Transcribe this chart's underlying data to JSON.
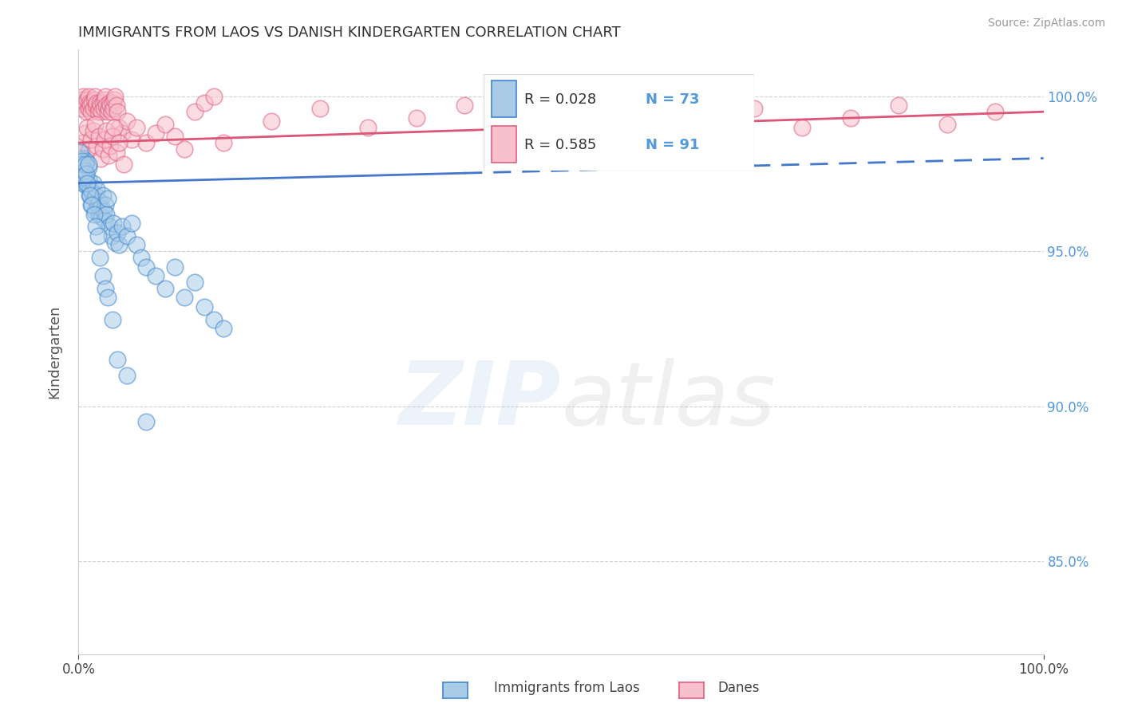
{
  "title": "IMMIGRANTS FROM LAOS VS DANISH KINDERGARTEN CORRELATION CHART",
  "source": "Source: ZipAtlas.com",
  "ylabel": "Kindergarten",
  "y_ticks": [
    85.0,
    90.0,
    95.0,
    100.0
  ],
  "y_tick_labels": [
    "85.0%",
    "90.0%",
    "95.0%",
    "100.0%"
  ],
  "legend_blue_r": "R = 0.028",
  "legend_blue_n": "N = 73",
  "legend_pink_r": "R = 0.585",
  "legend_pink_n": "N = 91",
  "blue_color": "#7EB3E0",
  "pink_color": "#F4A0B0",
  "blue_face": "#A8CCE8",
  "pink_face": "#F8C0CC",
  "blue_edge": "#4488CC",
  "pink_edge": "#E06080",
  "blue_line": "#4477CC",
  "pink_line": "#DD5577",
  "watermark_zip": "#AACCEE",
  "watermark_atlas": "#BBBBBB",
  "grid_color": "#CCCCCC",
  "title_color": "#333333",
  "source_color": "#999999",
  "ytick_color": "#5599DD",
  "ylabel_color": "#555555",
  "blue_x": [
    0.3,
    0.4,
    0.5,
    0.5,
    0.6,
    0.7,
    0.8,
    0.9,
    1.0,
    1.0,
    1.1,
    1.2,
    1.3,
    1.4,
    1.5,
    1.6,
    1.7,
    1.8,
    1.9,
    2.0,
    2.1,
    2.2,
    2.3,
    2.4,
    2.5,
    2.6,
    2.7,
    2.8,
    2.9,
    3.0,
    3.2,
    3.4,
    3.6,
    3.8,
    4.0,
    4.2,
    4.5,
    5.0,
    5.5,
    6.0,
    6.5,
    7.0,
    8.0,
    9.0,
    10.0,
    11.0,
    12.0,
    13.0,
    14.0,
    15.0,
    0.1,
    0.2,
    0.3,
    0.4,
    0.5,
    0.6,
    0.7,
    0.8,
    0.9,
    1.0,
    1.2,
    1.4,
    1.6,
    1.8,
    2.0,
    2.2,
    2.5,
    2.8,
    3.0,
    3.5,
    4.0,
    5.0,
    7.0
  ],
  "blue_y": [
    97.5,
    97.8,
    97.2,
    98.0,
    97.6,
    97.4,
    97.9,
    97.1,
    97.3,
    97.7,
    96.8,
    97.0,
    96.5,
    96.9,
    97.2,
    96.7,
    96.3,
    96.8,
    97.0,
    96.5,
    96.2,
    96.6,
    96.4,
    96.1,
    96.8,
    96.3,
    96.0,
    96.5,
    96.2,
    96.7,
    95.8,
    95.5,
    95.9,
    95.3,
    95.6,
    95.2,
    95.8,
    95.5,
    95.9,
    95.2,
    94.8,
    94.5,
    94.2,
    93.8,
    94.5,
    93.5,
    94.0,
    93.2,
    92.8,
    92.5,
    98.2,
    97.8,
    97.5,
    97.9,
    97.4,
    97.6,
    97.8,
    97.5,
    97.2,
    97.8,
    96.8,
    96.5,
    96.2,
    95.8,
    95.5,
    94.8,
    94.2,
    93.8,
    93.5,
    92.8,
    91.5,
    91.0,
    89.5
  ],
  "pink_x": [
    0.2,
    0.3,
    0.4,
    0.5,
    0.6,
    0.7,
    0.8,
    0.9,
    1.0,
    1.0,
    1.1,
    1.2,
    1.3,
    1.4,
    1.5,
    1.6,
    1.7,
    1.8,
    1.9,
    2.0,
    2.1,
    2.2,
    2.3,
    2.4,
    2.5,
    2.6,
    2.7,
    2.8,
    2.9,
    3.0,
    3.1,
    3.2,
    3.3,
    3.4,
    3.5,
    3.6,
    3.7,
    3.8,
    3.9,
    4.0,
    4.2,
    4.5,
    5.0,
    5.5,
    6.0,
    7.0,
    8.0,
    9.0,
    10.0,
    11.0,
    12.0,
    13.0,
    14.0,
    15.0,
    20.0,
    25.0,
    30.0,
    35.0,
    40.0,
    45.0,
    50.0,
    55.0,
    60.0,
    65.0,
    70.0,
    75.0,
    80.0,
    85.0,
    90.0,
    95.0,
    0.3,
    0.5,
    0.7,
    0.9,
    1.1,
    1.3,
    1.5,
    1.7,
    1.9,
    2.1,
    2.3,
    2.5,
    2.7,
    2.9,
    3.1,
    3.3,
    3.5,
    3.7,
    3.9,
    4.2,
    4.7
  ],
  "pink_y": [
    99.8,
    99.6,
    99.9,
    100.0,
    99.7,
    99.8,
    99.5,
    99.9,
    100.0,
    99.6,
    99.8,
    99.7,
    99.5,
    99.8,
    99.6,
    99.9,
    100.0,
    99.7,
    99.8,
    99.5,
    99.6,
    99.8,
    99.7,
    99.5,
    99.8,
    99.6,
    99.9,
    100.0,
    99.7,
    99.5,
    99.6,
    99.8,
    99.7,
    99.5,
    99.8,
    99.6,
    99.9,
    100.0,
    99.7,
    99.5,
    99.0,
    98.8,
    99.2,
    98.6,
    99.0,
    98.5,
    98.8,
    99.1,
    98.7,
    98.3,
    99.5,
    99.8,
    100.0,
    98.5,
    99.2,
    99.6,
    99.0,
    99.3,
    99.7,
    99.1,
    99.4,
    99.8,
    100.0,
    99.2,
    99.6,
    99.0,
    99.3,
    99.7,
    99.1,
    99.5,
    98.2,
    98.5,
    98.8,
    99.0,
    98.3,
    98.6,
    98.9,
    99.1,
    98.4,
    98.7,
    98.0,
    98.3,
    98.6,
    98.9,
    98.1,
    98.4,
    98.7,
    99.0,
    98.2,
    98.5,
    97.8
  ]
}
